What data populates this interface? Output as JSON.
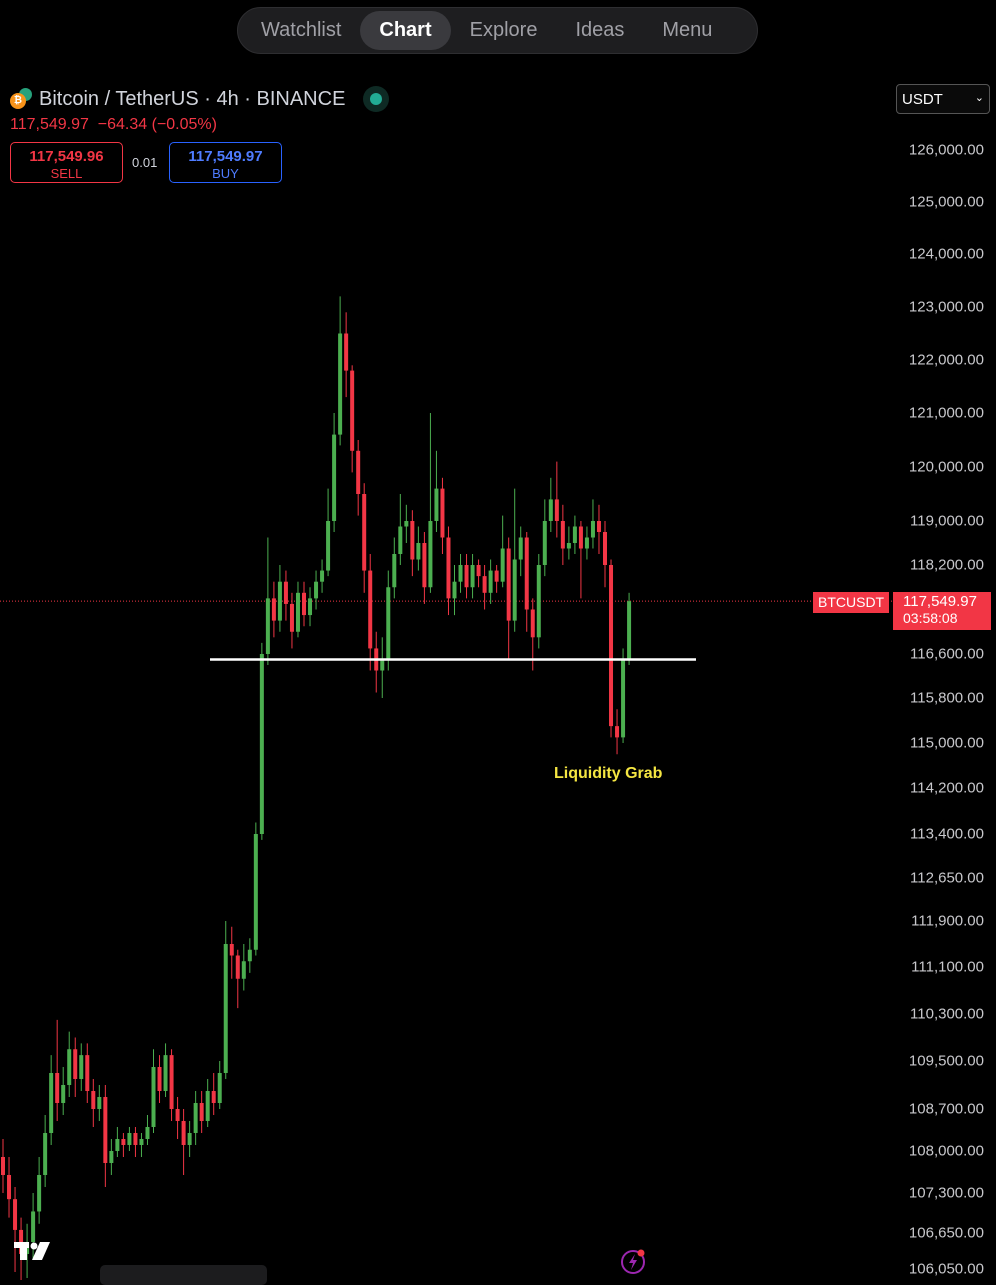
{
  "nav": {
    "tabs": [
      {
        "label": "Watchlist",
        "active": false
      },
      {
        "label": "Chart",
        "active": true
      },
      {
        "label": "Explore",
        "active": false
      },
      {
        "label": "Ideas",
        "active": false
      },
      {
        "label": "Menu",
        "active": false
      }
    ]
  },
  "symbol": {
    "title": "Bitcoin / TetherUS · 4h · BINANCE",
    "icon": "bitcoin-tether-icon",
    "market_status": "open",
    "change_line": "117,549.97  −64.34 (−0.05%)",
    "sell_price": "117,549.96",
    "sell_label": "SELL",
    "spread": "0.01",
    "buy_price": "117,549.97",
    "buy_label": "BUY"
  },
  "currency_select": {
    "value": "USDT"
  },
  "last_price": {
    "symbol": "BTCUSDT",
    "price": "117,549.97",
    "countdown": "03:58:08"
  },
  "colors": {
    "up": "#4caf50",
    "down": "#f23645",
    "annotation": "#f5e642",
    "background": "#000000"
  },
  "chart_data": {
    "type": "candlestick",
    "timeframe": "4h",
    "scale": "log",
    "grid": false,
    "y_ticks": [
      "126,000.00",
      "125,000.00",
      "124,000.00",
      "123,000.00",
      "122,000.00",
      "121,000.00",
      "120,000.00",
      "119,000.00",
      "118,200.00",
      "116,600.00",
      "115,800.00",
      "115,000.00",
      "114,200.00",
      "113,400.00",
      "112,650.00",
      "111,900.00",
      "111,100.00",
      "110,300.00",
      "109,500.00",
      "108,700.00",
      "108,000.00",
      "107,300.00",
      "106,650.00",
      "106,050.00"
    ],
    "ylim": [
      106050,
      126000
    ],
    "horizontal_line": 116500,
    "annotation": {
      "text": "Liquidity Grab",
      "price": 114600
    },
    "candles_ohlc": [
      [
        107900,
        108200,
        107300,
        107600
      ],
      [
        107600,
        107900,
        106900,
        107200
      ],
      [
        107200,
        107400,
        106000,
        106700
      ],
      [
        106700,
        106900,
        105800,
        106300
      ],
      [
        106300,
        106800,
        105900,
        106500
      ],
      [
        106500,
        107300,
        106200,
        107000
      ],
      [
        107000,
        107900,
        106800,
        107600
      ],
      [
        107600,
        108600,
        107400,
        108300
      ],
      [
        108300,
        109600,
        108100,
        109300
      ],
      [
        109300,
        110200,
        108500,
        108800
      ],
      [
        108800,
        109400,
        108600,
        109100
      ],
      [
        109100,
        110000,
        108900,
        109700
      ],
      [
        109700,
        109900,
        108900,
        109200
      ],
      [
        109200,
        109800,
        109000,
        109600
      ],
      [
        109600,
        109800,
        108800,
        109000
      ],
      [
        109000,
        109200,
        108400,
        108700
      ],
      [
        108700,
        109100,
        108500,
        108900
      ],
      [
        108900,
        109100,
        107400,
        107800
      ],
      [
        107800,
        108200,
        107600,
        108000
      ],
      [
        108000,
        108400,
        107900,
        108200
      ],
      [
        108200,
        108300,
        107900,
        108100
      ],
      [
        108100,
        108400,
        108000,
        108300
      ],
      [
        108300,
        108400,
        107900,
        108100
      ],
      [
        108100,
        108300,
        107900,
        108200
      ],
      [
        108200,
        108600,
        108100,
        108400
      ],
      [
        108400,
        109700,
        108300,
        109400
      ],
      [
        109400,
        109600,
        108800,
        109000
      ],
      [
        109000,
        109800,
        108900,
        109600
      ],
      [
        109600,
        109700,
        108500,
        108700
      ],
      [
        108700,
        108900,
        108200,
        108500
      ],
      [
        108500,
        108700,
        107600,
        108100
      ],
      [
        108100,
        108500,
        107900,
        108300
      ],
      [
        108300,
        109000,
        108100,
        108800
      ],
      [
        108800,
        109000,
        108300,
        108500
      ],
      [
        108500,
        109200,
        108400,
        109000
      ],
      [
        109000,
        109300,
        108600,
        108800
      ],
      [
        108800,
        109500,
        108700,
        109300
      ],
      [
        109300,
        111900,
        109200,
        111500
      ],
      [
        111500,
        111800,
        110900,
        111300
      ],
      [
        111300,
        111400,
        110400,
        110900
      ],
      [
        110900,
        111500,
        110700,
        111200
      ],
      [
        111200,
        111600,
        111000,
        111400
      ],
      [
        111400,
        113600,
        111300,
        113400
      ],
      [
        113400,
        116800,
        113300,
        116600
      ],
      [
        116600,
        118700,
        116400,
        117600
      ],
      [
        117600,
        117900,
        116900,
        117200
      ],
      [
        117200,
        118200,
        117000,
        117900
      ],
      [
        117900,
        118100,
        117200,
        117500
      ],
      [
        117500,
        117700,
        116700,
        117000
      ],
      [
        117000,
        117900,
        116900,
        117700
      ],
      [
        117700,
        117900,
        117100,
        117300
      ],
      [
        117300,
        117800,
        117100,
        117600
      ],
      [
        117600,
        118100,
        117400,
        117900
      ],
      [
        117900,
        118300,
        117700,
        118100
      ],
      [
        118100,
        119600,
        118000,
        119000
      ],
      [
        119000,
        121000,
        118800,
        120600
      ],
      [
        120600,
        123200,
        120400,
        122500
      ],
      [
        122500,
        122900,
        121300,
        121800
      ],
      [
        121800,
        121900,
        119900,
        120300
      ],
      [
        120300,
        120500,
        119100,
        119500
      ],
      [
        119500,
        119700,
        117700,
        118100
      ],
      [
        118100,
        118400,
        116300,
        116700
      ],
      [
        116700,
        117000,
        115900,
        116300
      ],
      [
        116300,
        116900,
        115800,
        116500
      ],
      [
        116500,
        118100,
        116300,
        117800
      ],
      [
        117800,
        118700,
        117600,
        118400
      ],
      [
        118400,
        119500,
        118200,
        118900
      ],
      [
        118900,
        119300,
        118600,
        119000
      ],
      [
        119000,
        119200,
        118000,
        118300
      ],
      [
        118300,
        118900,
        118100,
        118600
      ],
      [
        118600,
        118800,
        117500,
        117800
      ],
      [
        117800,
        121000,
        117700,
        119000
      ],
      [
        119000,
        120300,
        118800,
        119600
      ],
      [
        119600,
        119800,
        118400,
        118700
      ],
      [
        118700,
        118900,
        117300,
        117600
      ],
      [
        117600,
        118200,
        117300,
        117900
      ],
      [
        117900,
        118400,
        117700,
        118200
      ],
      [
        118200,
        118400,
        117600,
        117800
      ],
      [
        117800,
        118400,
        117600,
        118200
      ],
      [
        118200,
        118300,
        117800,
        118000
      ],
      [
        118000,
        118200,
        117400,
        117700
      ],
      [
        117700,
        118300,
        117500,
        118100
      ],
      [
        118100,
        118200,
        117700,
        117900
      ],
      [
        117900,
        119100,
        117800,
        118500
      ],
      [
        118500,
        118700,
        116500,
        117200
      ],
      [
        117200,
        119600,
        117000,
        118300
      ],
      [
        118300,
        118900,
        118000,
        118700
      ],
      [
        118700,
        118800,
        117000,
        117400
      ],
      [
        117400,
        117600,
        116300,
        116900
      ],
      [
        116900,
        118400,
        116700,
        118200
      ],
      [
        118200,
        119400,
        118000,
        119000
      ],
      [
        119000,
        119800,
        118800,
        119400
      ],
      [
        119400,
        120100,
        118700,
        119000
      ],
      [
        119000,
        119300,
        118200,
        118500
      ],
      [
        118500,
        118900,
        118300,
        118600
      ],
      [
        118600,
        119100,
        118400,
        118900
      ],
      [
        118900,
        119000,
        117600,
        118500
      ],
      [
        118500,
        118900,
        118300,
        118700
      ],
      [
        118700,
        119400,
        118500,
        119000
      ],
      [
        119000,
        119300,
        118400,
        118800
      ],
      [
        118800,
        119000,
        117800,
        118200
      ],
      [
        118200,
        118300,
        115100,
        115300
      ],
      [
        115300,
        115600,
        114800,
        115100
      ],
      [
        115100,
        116700,
        115000,
        116500
      ],
      [
        116500,
        117700,
        116400,
        117550
      ]
    ]
  }
}
